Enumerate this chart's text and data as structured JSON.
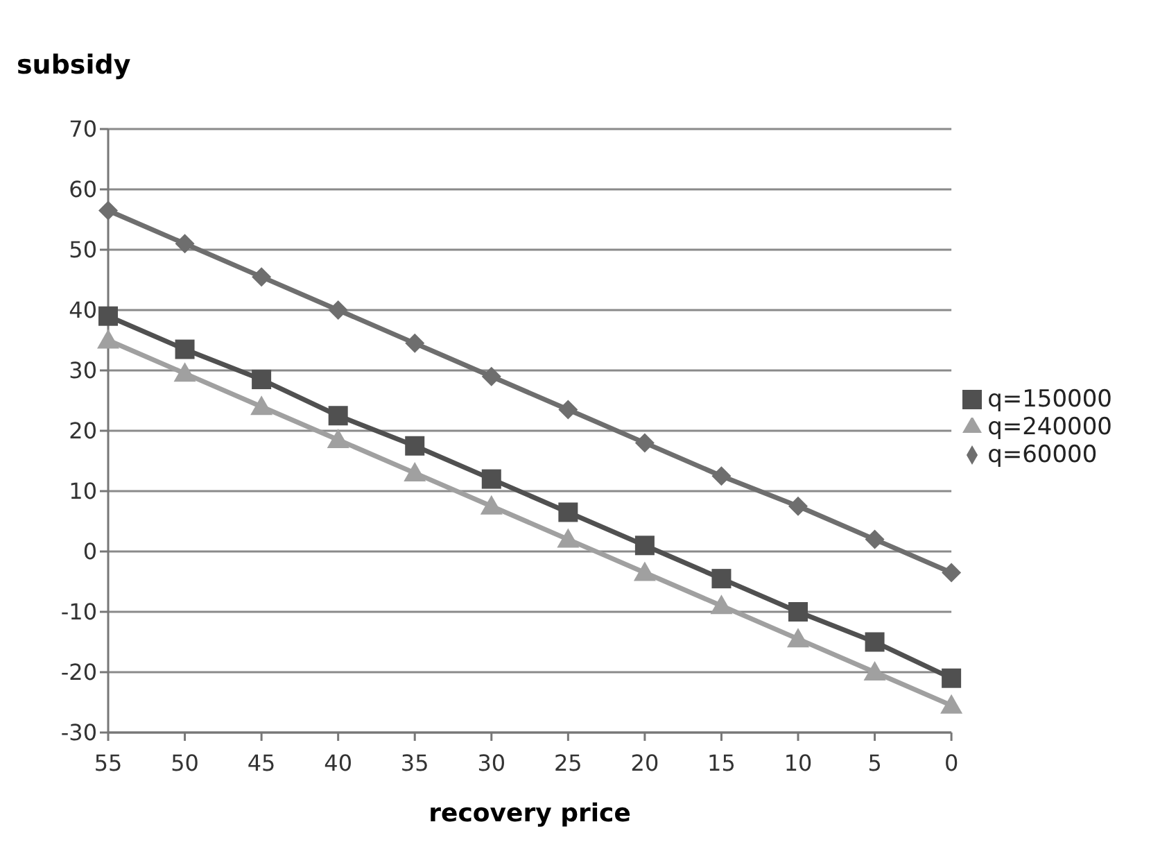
{
  "chart_data": {
    "type": "line",
    "title": "subsidy",
    "xlabel": "recovery price",
    "categories": [
      "55",
      "50",
      "45",
      "40",
      "35",
      "30",
      "25",
      "20",
      "15",
      "10",
      "5",
      "0"
    ],
    "series": [
      {
        "name": "q=60000",
        "color": "#6e6e6e",
        "marker": "diamond",
        "values": [
          56.5,
          51,
          45.5,
          40,
          34.5,
          29,
          23.5,
          18,
          12.5,
          7.5,
          2,
          -3.5
        ]
      },
      {
        "name": "q=150000",
        "color": "#505050",
        "marker": "square",
        "values": [
          39,
          33.5,
          28.5,
          22.5,
          17.5,
          12,
          6.5,
          1,
          -4.5,
          -10,
          -15,
          -21
        ]
      },
      {
        "name": "q=240000",
        "color": "#a0a0a0",
        "marker": "triangle",
        "values": [
          35,
          29.5,
          24,
          18.5,
          13,
          7.5,
          2,
          -3.5,
          -9,
          -14.5,
          -20,
          -25.5
        ]
      }
    ],
    "ylim": [
      -30,
      70
    ],
    "yticks": [
      -30,
      -20,
      -10,
      0,
      10,
      20,
      30,
      40,
      50,
      60,
      70
    ],
    "grid": "y",
    "legend": "right",
    "line_style": "solid"
  }
}
